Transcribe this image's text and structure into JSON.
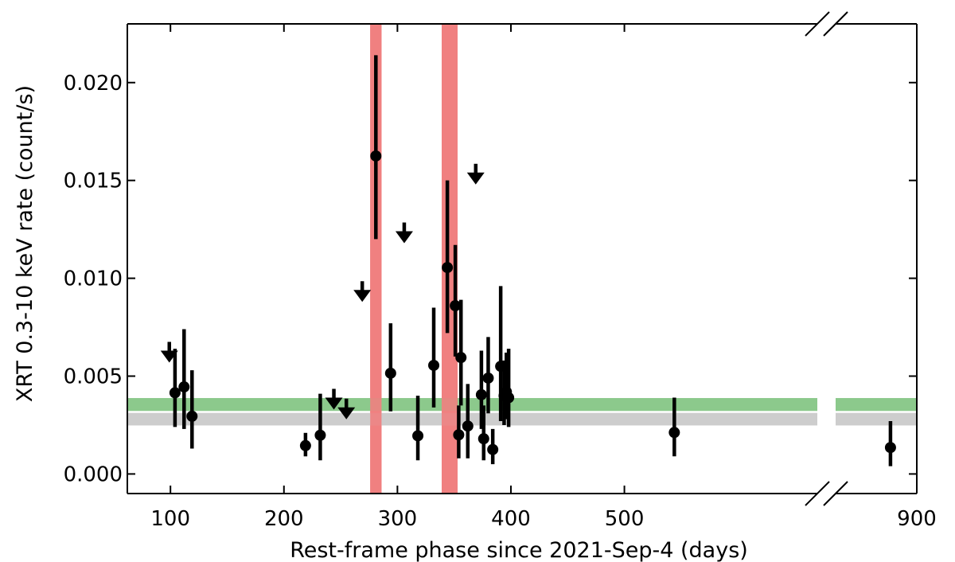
{
  "chart_data": {
    "type": "scatter",
    "title": "",
    "xlabel": "Rest-frame phase since 2021-Sep-4 (days)",
    "ylabel": "XRT 0.3-10 keV rate (count/s)",
    "xlim_left": [
      62,
      670
    ],
    "xlim_right": [
      863,
      900
    ],
    "ylim": [
      -0.001,
      0.023
    ],
    "x_ticks": [
      100,
      200,
      300,
      400,
      500,
      900
    ],
    "x_tick_labels": [
      "100",
      "200",
      "300",
      "400",
      "500",
      "900"
    ],
    "y_ticks": [
      0.0,
      0.005,
      0.01,
      0.015,
      0.02
    ],
    "y_tick_labels": [
      "0.000",
      "0.005",
      "0.010",
      "0.015",
      "0.020"
    ],
    "axis_break": true,
    "grid": false,
    "bands": [
      {
        "name": "",
        "orientation": "vertical",
        "range": [
          276,
          286
        ],
        "color": "#f08080"
      },
      {
        "name": "",
        "orientation": "vertical",
        "range": [
          339,
          353
        ],
        "color": "#f08080"
      },
      {
        "name": "",
        "orientation": "horizontal",
        "range": [
          0.00322,
          0.00388
        ],
        "color": "#8cc98c"
      },
      {
        "name": "",
        "orientation": "horizontal",
        "range": [
          0.00248,
          0.00312
        ],
        "color": "#cdcdcd"
      }
    ],
    "series": [
      {
        "name": "",
        "kind": "detections",
        "color": "#000000",
        "points": [
          {
            "x": 104,
            "y": 0.00415,
            "ylo": 0.0024,
            "yhi": 0.0064
          },
          {
            "x": 112,
            "y": 0.00445,
            "ylo": 0.0023,
            "yhi": 0.0074
          },
          {
            "x": 119,
            "y": 0.00295,
            "ylo": 0.0013,
            "yhi": 0.0053
          },
          {
            "x": 219,
            "y": 0.00145,
            "ylo": 0.0009,
            "yhi": 0.0021
          },
          {
            "x": 232,
            "y": 0.00198,
            "ylo": 0.0007,
            "yhi": 0.0041
          },
          {
            "x": 281,
            "y": 0.01625,
            "ylo": 0.012,
            "yhi": 0.0214
          },
          {
            "x": 294,
            "y": 0.00515,
            "ylo": 0.0032,
            "yhi": 0.0077
          },
          {
            "x": 318,
            "y": 0.00195,
            "ylo": 0.0007,
            "yhi": 0.004
          },
          {
            "x": 332,
            "y": 0.00555,
            "ylo": 0.0034,
            "yhi": 0.0085
          },
          {
            "x": 344,
            "y": 0.01055,
            "ylo": 0.0072,
            "yhi": 0.015
          },
          {
            "x": 351,
            "y": 0.0086,
            "ylo": 0.006,
            "yhi": 0.0117
          },
          {
            "x": 354,
            "y": 0.002,
            "ylo": 0.0008,
            "yhi": 0.0035
          },
          {
            "x": 356,
            "y": 0.00595,
            "ylo": 0.0035,
            "yhi": 0.0089
          },
          {
            "x": 362,
            "y": 0.00245,
            "ylo": 0.0008,
            "yhi": 0.0046
          },
          {
            "x": 374,
            "y": 0.00405,
            "ylo": 0.0023,
            "yhi": 0.0063
          },
          {
            "x": 376,
            "y": 0.0018,
            "ylo": 0.0007,
            "yhi": 0.0035
          },
          {
            "x": 380,
            "y": 0.0049,
            "ylo": 0.0031,
            "yhi": 0.007
          },
          {
            "x": 384,
            "y": 0.00125,
            "ylo": 0.0005,
            "yhi": 0.0023
          },
          {
            "x": 391,
            "y": 0.0055,
            "ylo": 0.0027,
            "yhi": 0.0096
          },
          {
            "x": 394,
            "y": 0.004,
            "ylo": 0.0025,
            "yhi": 0.0058
          },
          {
            "x": 396,
            "y": 0.0042,
            "ylo": 0.0028,
            "yhi": 0.0062
          },
          {
            "x": 398,
            "y": 0.0039,
            "ylo": 0.0024,
            "yhi": 0.0064
          },
          {
            "x": 544,
            "y": 0.00212,
            "ylo": 0.0009,
            "yhi": 0.0039
          },
          {
            "x": 888,
            "y": 0.00135,
            "ylo": 0.0004,
            "yhi": 0.0027
          }
        ]
      },
      {
        "name": "",
        "kind": "upper-limits",
        "color": "#000000",
        "points": [
          {
            "x": 99,
            "y": 0.00675
          },
          {
            "x": 244,
            "y": 0.00435
          },
          {
            "x": 255,
            "y": 0.00385
          },
          {
            "x": 269,
            "y": 0.00985
          },
          {
            "x": 306,
            "y": 0.01285
          },
          {
            "x": 369,
            "y": 0.01585
          }
        ]
      }
    ]
  }
}
